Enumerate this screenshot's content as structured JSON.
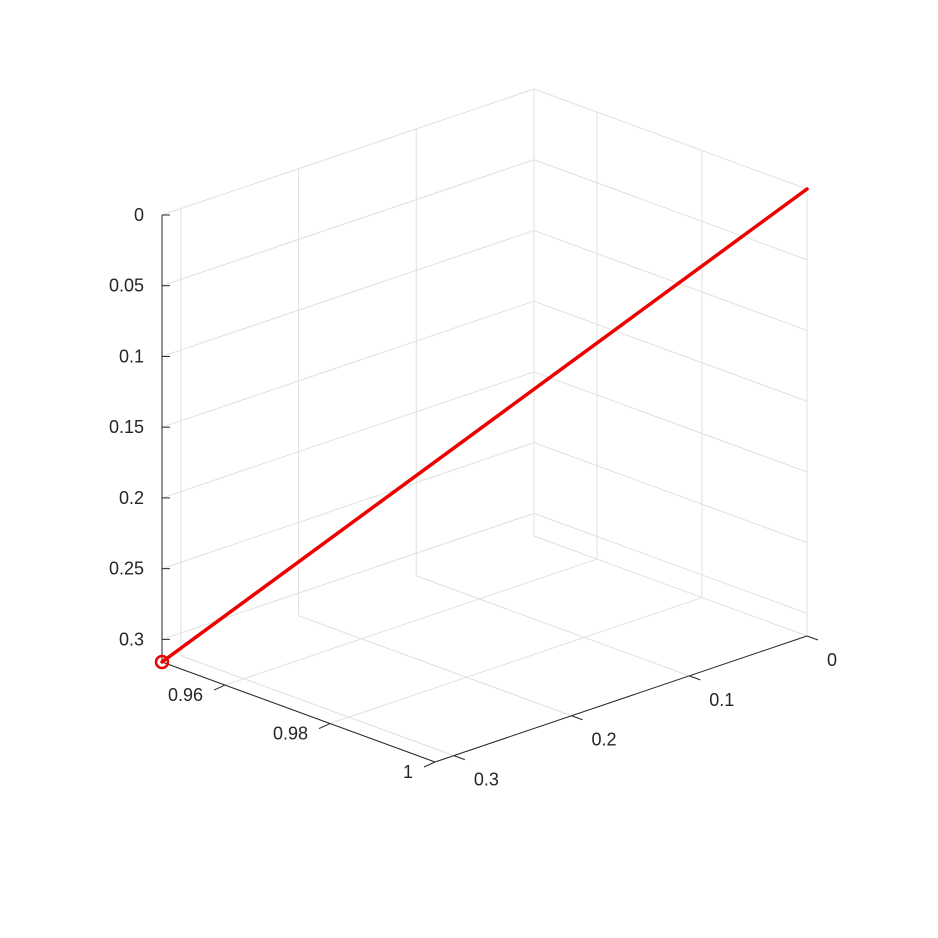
{
  "chart_data": {
    "type": "line",
    "view": "3d",
    "title": "",
    "xlabel": "",
    "ylabel": "",
    "zlabel": "",
    "grid": true,
    "colors": {
      "line": "#ee0000",
      "axis": "#262626",
      "grid": "#e0e0e0"
    },
    "x_axis": {
      "ticks": [
        0.96,
        0.98,
        1
      ],
      "tick_labels": [
        "0.96",
        "0.98",
        "1"
      ]
    },
    "y_axis": {
      "ticks": [
        0.3,
        0.2,
        0.1,
        0
      ],
      "tick_labels": [
        "0.3",
        "0.2",
        "0.1",
        "0"
      ]
    },
    "z_axis": {
      "reversed": true,
      "ticks": [
        0,
        0.05,
        0.1,
        0.15,
        0.2,
        0.25,
        0.3
      ],
      "tick_labels": [
        "0",
        "0.05",
        "0.1",
        "0.15",
        "0.2",
        "0.25",
        "0.3"
      ]
    },
    "series": [
      {
        "points": [
          {
            "x": 0.948,
            "y": 0.316,
            "z": 0.316
          },
          {
            "x": 1.0,
            "y": 0.0,
            "z": 0.0
          }
        ],
        "start_marker": "circle"
      }
    ]
  }
}
